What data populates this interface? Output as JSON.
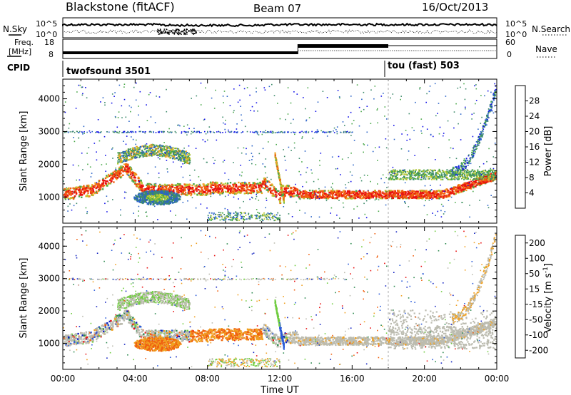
{
  "header": {
    "station": "Blackstone (fitACF)",
    "beam": "Beam 07",
    "date": "16/Oct/2013"
  },
  "summary_panels": {
    "nsky_label": "N.Sky",
    "nsky_ticks": [
      "10^5",
      "10^0"
    ],
    "nsearch_label": "N.Search",
    "nsearch_ticks": [
      "10^5",
      "10^0"
    ],
    "freq_label_line1": "Freq.",
    "freq_label_line2": "[MHz]",
    "freq_ticks": [
      "18",
      "8"
    ],
    "nave_label": "Nave",
    "nave_ticks": [
      "60",
      "0"
    ],
    "cpid_label": "CPID",
    "cpid_modes": [
      {
        "name": "twofsound 3501",
        "start_hour": 0
      },
      {
        "name": "tou (fast) 503",
        "start_hour": 18
      }
    ]
  },
  "chart_data": [
    {
      "type": "heatmap",
      "name": "power",
      "x_range": [
        0,
        24
      ],
      "xticks": [
        "00:00",
        "04:00",
        "08:00",
        "12:00",
        "16:00",
        "20:00",
        "00:00"
      ],
      "ylabel": "Slant Range [km]",
      "ylim": [
        200,
        4600
      ],
      "yticks": [
        "1000",
        "2000",
        "3000",
        "4000"
      ],
      "colorbar_label": "Power [dB]",
      "colorbar_ticks": [
        "4",
        "8",
        "12",
        "16",
        "20",
        "24",
        "28"
      ],
      "colorbar_colors": [
        "#1010e8",
        "#2a63c8",
        "#3d8a6a",
        "#4aa84a",
        "#b8c830",
        "#f0a020",
        "#f06010",
        "#e81010"
      ]
    },
    {
      "type": "heatmap",
      "name": "velocity",
      "x_range": [
        0,
        24
      ],
      "xticks": [
        "00:00",
        "04:00",
        "08:00",
        "12:00",
        "16:00",
        "20:00",
        "00:00"
      ],
      "xlabel": "Time UT",
      "ylabel": "Slant Range [km]",
      "ylim": [
        200,
        4600
      ],
      "yticks": [
        "1000",
        "2000",
        "3000",
        "4000"
      ],
      "colorbar_label": "Velocity [m s^-1]",
      "colorbar_ticks": [
        "200",
        "100",
        "50",
        "15",
        "-15",
        "-50",
        "-100",
        "-200"
      ],
      "colorbar_colors": [
        "#1020c0",
        "#2a5ad8",
        "#2e8a50",
        "#70cc40",
        "#bcbcb0",
        "#f0a020",
        "#f06010",
        "#e81010"
      ]
    }
  ]
}
